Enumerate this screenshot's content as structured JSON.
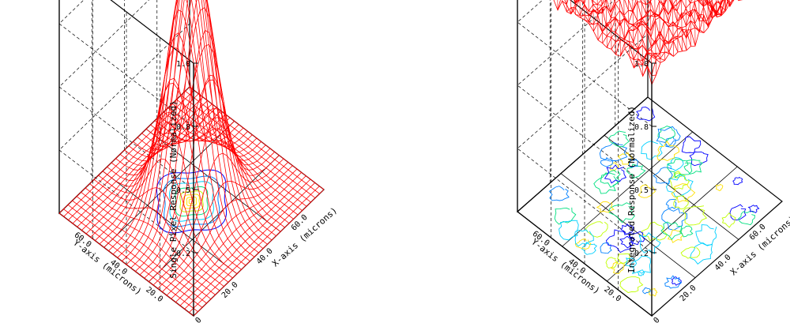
{
  "chart_data": [
    {
      "type": "surface3d",
      "panel": "left",
      "title": "",
      "zlabel": "Single Pixel Response (Normalized)",
      "xlabel": "X-axis (microns)",
      "ylabel": "Y-axis (microns)",
      "z_ticks": [
        "0.2",
        "0.5",
        "0.8",
        "1.0"
      ],
      "x_ticks": [
        "0.0",
        "20.0",
        "40.0",
        "60.0"
      ],
      "y_ticks": [
        "20.0",
        "40.0",
        "60.0"
      ],
      "xlim": [
        0,
        75
      ],
      "ylim": [
        0,
        75
      ],
      "zlim": [
        0,
        1
      ],
      "surface": {
        "shape": "gaussian-peak",
        "peak_center": [
          37.5,
          37.5
        ],
        "peak_value": 1.0,
        "grid_lines": 30
      },
      "contour_on_floor": true,
      "colors": {
        "surface": "#ff0000",
        "contours": [
          "#0000ff",
          "#0080ff",
          "#00d0ff",
          "#00e080",
          "#c0ff00",
          "#ffe000"
        ]
      }
    },
    {
      "type": "surface3d",
      "panel": "right",
      "title": "",
      "zlabel": "Integrated Response (Normalized)",
      "xlabel": "X-axis (microns)",
      "ylabel": "Y-axis (microns)",
      "z_ticks": [
        "0.2",
        "0.5",
        "0.8",
        "1.0"
      ],
      "x_ticks": [
        "0.0",
        "20.0",
        "40.0",
        "60.0"
      ],
      "y_ticks": [
        "20.0",
        "40.0",
        "60.0"
      ],
      "xlim": [
        0,
        75
      ],
      "ylim": [
        0,
        75
      ],
      "zlim": [
        0,
        1
      ],
      "surface": {
        "shape": "near-flat",
        "mean_value": 0.95,
        "min_value": 0.82,
        "grid_lines": 30
      },
      "contour_on_floor": true,
      "colors": {
        "surface": "#ff0000",
        "contours": [
          "#0000ff",
          "#0080ff",
          "#00d0ff",
          "#00e080",
          "#c0ff00",
          "#ffe000"
        ]
      }
    }
  ]
}
